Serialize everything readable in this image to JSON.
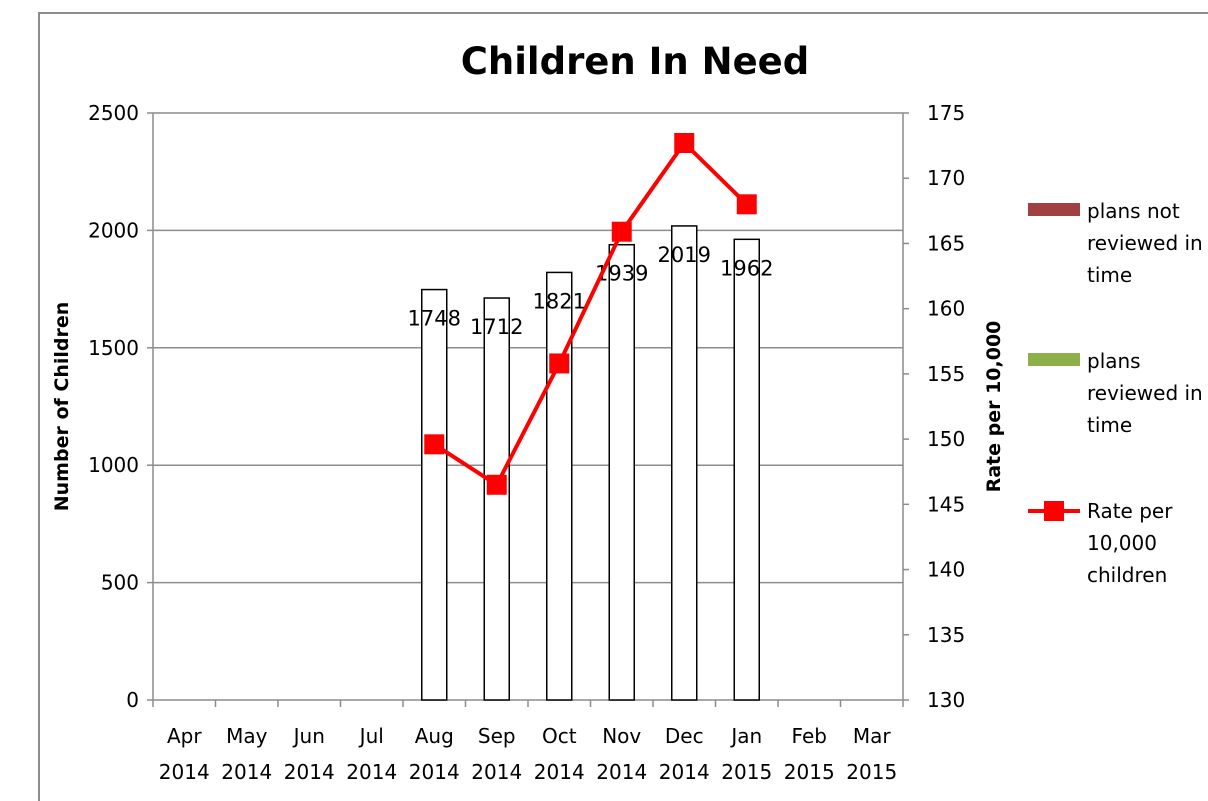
{
  "chart_data": {
    "type": "bar",
    "title": "Children In Need",
    "ylabel": "Number of Children",
    "y2label": "Rate per 10,000",
    "ylim": [
      0,
      2500
    ],
    "yticks": [
      0,
      500,
      1000,
      1500,
      2000,
      2500
    ],
    "y2lim": [
      130,
      175
    ],
    "y2ticks": [
      130,
      135,
      140,
      145,
      150,
      155,
      160,
      165,
      170,
      175
    ],
    "grid": true,
    "legend_position": "right",
    "categories": [
      {
        "month": "Apr",
        "year": "2014"
      },
      {
        "month": "May",
        "year": "2014"
      },
      {
        "month": "Jun",
        "year": "2014"
      },
      {
        "month": "Jul",
        "year": "2014"
      },
      {
        "month": "Aug",
        "year": "2014"
      },
      {
        "month": "Sep",
        "year": "2014"
      },
      {
        "month": "Oct",
        "year": "2014"
      },
      {
        "month": "Nov",
        "year": "2014"
      },
      {
        "month": "Dec",
        "year": "2014"
      },
      {
        "month": "Jan",
        "year": "2015"
      },
      {
        "month": "Feb",
        "year": "2015"
      },
      {
        "month": "Mar",
        "year": "2015"
      }
    ],
    "bars": [
      null,
      null,
      null,
      null,
      1748,
      1712,
      1821,
      1939,
      2019,
      1962,
      null,
      null
    ],
    "series": [
      {
        "name": "plans not reviewed in time",
        "type": "bar",
        "color": "#a04040",
        "values": [
          null,
          null,
          null,
          null,
          null,
          null,
          null,
          null,
          null,
          null,
          null,
          null
        ]
      },
      {
        "name": "plans reviewed in time",
        "type": "bar",
        "color": "#8db04a",
        "values": [
          null,
          null,
          null,
          null,
          null,
          null,
          null,
          null,
          null,
          null,
          null,
          null
        ]
      },
      {
        "name": "Rate per 10,000 children",
        "type": "line",
        "axis": "secondary",
        "color": "#ff0000",
        "values": [
          null,
          null,
          null,
          null,
          149.6,
          146.5,
          155.8,
          165.9,
          172.7,
          168.0,
          null,
          null
        ]
      }
    ],
    "legend": [
      {
        "lines": [
          "plans not",
          "reviewed in",
          "time"
        ],
        "swatch": "bar",
        "color": "#a04040"
      },
      {
        "lines": [
          "plans",
          "reviewed in",
          "time"
        ],
        "swatch": "bar",
        "color": "#8db04a"
      },
      {
        "lines": [
          "Rate per",
          "10,000",
          "children"
        ],
        "swatch": "line",
        "color": "#ff0000"
      }
    ]
  }
}
